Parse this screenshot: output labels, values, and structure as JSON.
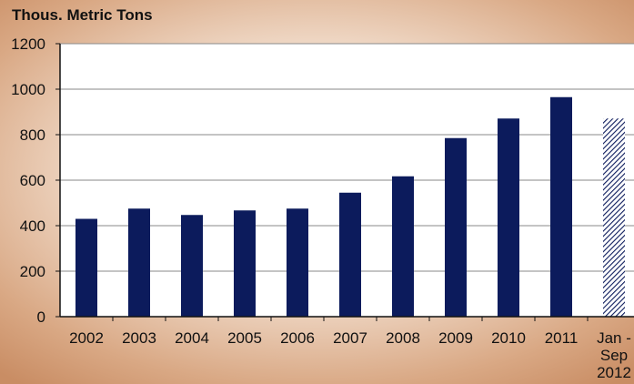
{
  "chart_data": {
    "type": "bar",
    "title": "",
    "ylabel": "Thous. Metric Tons",
    "xlabel": "",
    "ylim": [
      0,
      1200
    ],
    "yticks": [
      0,
      200,
      400,
      600,
      800,
      1000,
      1200
    ],
    "grid": true,
    "categories": [
      "2002",
      "2003",
      "2004",
      "2005",
      "2006",
      "2007",
      "2008",
      "2009",
      "2010",
      "2011",
      "Jan - Sep 2012"
    ],
    "category_lines": [
      [
        "2002"
      ],
      [
        "2003"
      ],
      [
        "2004"
      ],
      [
        "2005"
      ],
      [
        "2006"
      ],
      [
        "2007"
      ],
      [
        "2008"
      ],
      [
        "2009"
      ],
      [
        "2010"
      ],
      [
        "2011"
      ],
      [
        "Jan -",
        "Sep",
        "2012"
      ]
    ],
    "values": [
      430,
      475,
      447,
      467,
      475,
      545,
      617,
      785,
      871,
      965,
      871
    ],
    "bar_color": "#0c1b5c",
    "partial_bar_color": "#7c87b4",
    "partial_category_index": 10
  }
}
